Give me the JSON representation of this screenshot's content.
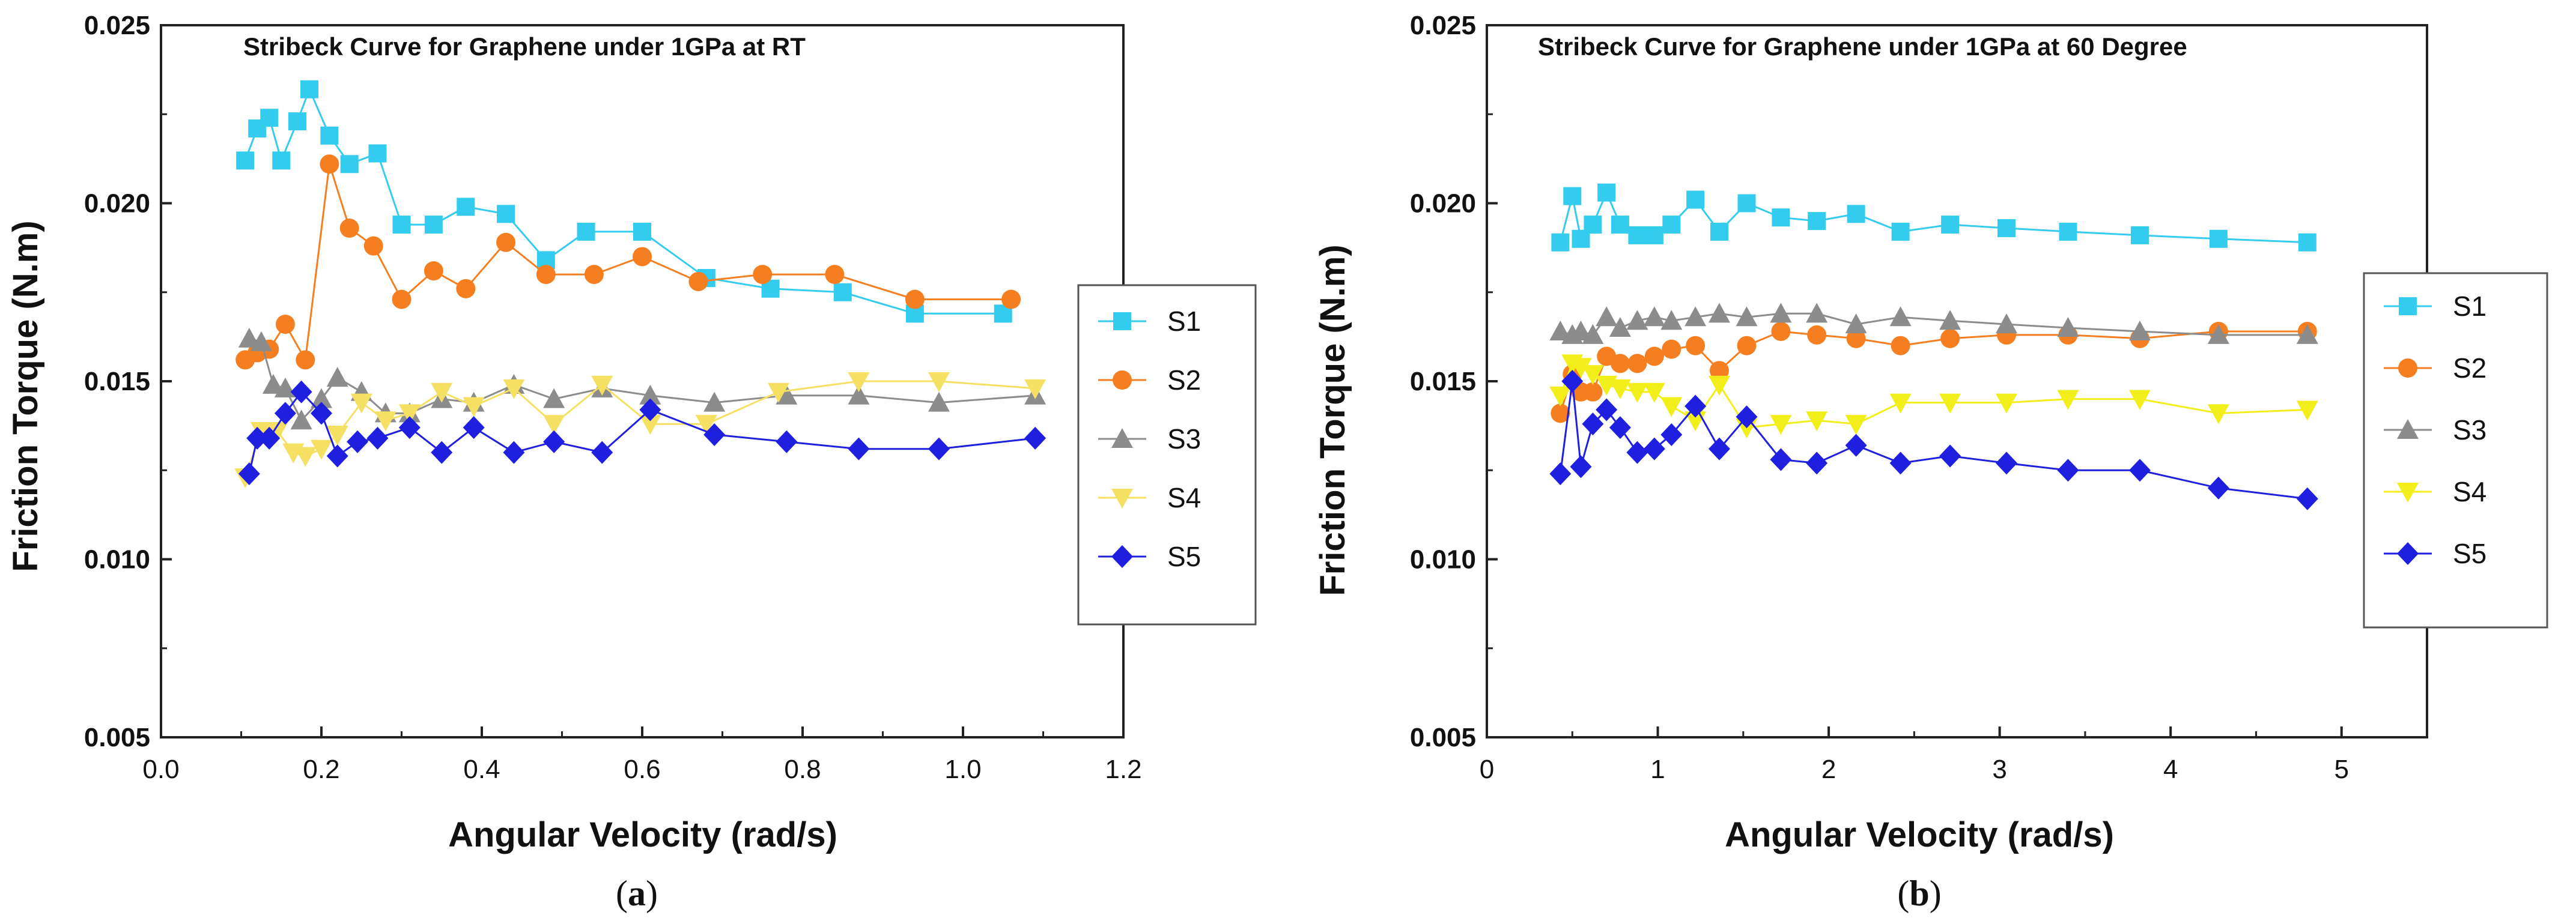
{
  "panels": [
    {
      "caption_open": "(",
      "caption_letter": "a",
      "caption_close": ")"
    },
    {
      "caption_open": "(",
      "caption_letter": "b",
      "caption_close": ")"
    }
  ],
  "chart_data": [
    {
      "type": "line",
      "title": "Stribeck Curve for Graphene under 1GPa at RT",
      "xlabel": "Angular Velocity (rad/s)",
      "ylabel": "Friction Torque (N.m)",
      "xlim": [
        0.0,
        1.2
      ],
      "ylim": [
        0.005,
        0.025
      ],
      "xticks": [
        0.0,
        0.2,
        0.4,
        0.6,
        0.8,
        1.0,
        1.2
      ],
      "xtick_labels": [
        "0.0",
        "0.2",
        "0.4",
        "0.6",
        "0.8",
        "1.0",
        "1.2"
      ],
      "yticks": [
        0.005,
        0.01,
        0.015,
        0.02,
        0.025
      ],
      "ytick_labels": [
        "0.005",
        "0.010",
        "0.015",
        "0.020",
        "0.025"
      ],
      "legend_position": "right",
      "series": [
        {
          "name": "S1",
          "marker": "square",
          "color": "#33CCEE",
          "x": [
            0.105,
            0.12,
            0.135,
            0.15,
            0.17,
            0.185,
            0.21,
            0.235,
            0.27,
            0.3,
            0.34,
            0.38,
            0.43,
            0.48,
            0.53,
            0.6,
            0.68,
            0.76,
            0.85,
            0.94,
            1.05
          ],
          "y": [
            0.0212,
            0.0221,
            0.0224,
            0.0212,
            0.0223,
            0.0232,
            0.0219,
            0.0211,
            0.0214,
            0.0194,
            0.0194,
            0.0199,
            0.0197,
            0.0184,
            0.0192,
            0.0192,
            0.0179,
            0.0176,
            0.0175,
            0.0169,
            0.0169
          ]
        },
        {
          "name": "S2",
          "marker": "circle",
          "color": "#F57F20",
          "x": [
            0.105,
            0.12,
            0.135,
            0.155,
            0.18,
            0.21,
            0.235,
            0.265,
            0.3,
            0.34,
            0.38,
            0.43,
            0.48,
            0.54,
            0.6,
            0.67,
            0.75,
            0.84,
            0.94,
            1.06
          ],
          "y": [
            0.0156,
            0.0158,
            0.0159,
            0.0166,
            0.0156,
            0.0211,
            0.0193,
            0.0188,
            0.0173,
            0.0181,
            0.0176,
            0.0189,
            0.018,
            0.018,
            0.0185,
            0.0178,
            0.018,
            0.018,
            0.0173,
            0.0173
          ]
        },
        {
          "name": "S3",
          "marker": "triangle-up",
          "color": "#8C8C8C",
          "x": [
            0.11,
            0.125,
            0.14,
            0.155,
            0.175,
            0.2,
            0.22,
            0.25,
            0.28,
            0.31,
            0.35,
            0.39,
            0.44,
            0.49,
            0.55,
            0.61,
            0.69,
            0.78,
            0.87,
            0.97,
            1.09
          ],
          "y": [
            0.0162,
            0.0161,
            0.0149,
            0.0148,
            0.0139,
            0.0145,
            0.0151,
            0.0147,
            0.0141,
            0.0141,
            0.0145,
            0.0144,
            0.0149,
            0.0145,
            0.0148,
            0.0146,
            0.0144,
            0.0146,
            0.0146,
            0.0144,
            0.0146
          ]
        },
        {
          "name": "S4",
          "marker": "triangle-down",
          "color": "#F5E064",
          "x": [
            0.105,
            0.125,
            0.145,
            0.165,
            0.18,
            0.2,
            0.22,
            0.25,
            0.28,
            0.31,
            0.35,
            0.39,
            0.44,
            0.49,
            0.55,
            0.61,
            0.68,
            0.77,
            0.87,
            0.97,
            1.09
          ],
          "y": [
            0.0123,
            0.0136,
            0.0136,
            0.013,
            0.0129,
            0.0131,
            0.0135,
            0.0144,
            0.0139,
            0.0141,
            0.0147,
            0.0143,
            0.0148,
            0.0138,
            0.0149,
            0.0138,
            0.0138,
            0.0147,
            0.015,
            0.015,
            0.0148
          ]
        },
        {
          "name": "S5",
          "marker": "diamond",
          "color": "#1F1FE0",
          "x": [
            0.11,
            0.12,
            0.135,
            0.155,
            0.175,
            0.2,
            0.22,
            0.245,
            0.27,
            0.31,
            0.35,
            0.39,
            0.44,
            0.49,
            0.55,
            0.61,
            0.69,
            0.78,
            0.87,
            0.97,
            1.09
          ],
          "y": [
            0.0124,
            0.0134,
            0.0134,
            0.0141,
            0.0147,
            0.0141,
            0.0129,
            0.0133,
            0.0134,
            0.0137,
            0.013,
            0.0137,
            0.013,
            0.0133,
            0.013,
            0.0142,
            0.0135,
            0.0133,
            0.0131,
            0.0131,
            0.0134
          ]
        }
      ]
    },
    {
      "type": "line",
      "title": "Stribeck Curve for Graphene under 1GPa at 60 Degree",
      "xlabel": "Angular Velocity (rad/s)",
      "ylabel": "Friction Torque (N.m)",
      "xlim": [
        0,
        5.5
      ],
      "ylim": [
        0.005,
        0.025
      ],
      "xticks": [
        0,
        1,
        2,
        3,
        4,
        5
      ],
      "xtick_labels": [
        "0",
        "1",
        "2",
        "3",
        "4",
        "5"
      ],
      "yticks": [
        0.005,
        0.01,
        0.015,
        0.02,
        0.025
      ],
      "ytick_labels": [
        "0.005",
        "0.010",
        "0.015",
        "0.020",
        "0.025"
      ],
      "legend_position": "right",
      "series": [
        {
          "name": "S1",
          "marker": "square",
          "color": "#33CCEE",
          "x": [
            0.43,
            0.5,
            0.55,
            0.62,
            0.7,
            0.78,
            0.88,
            0.98,
            1.08,
            1.22,
            1.36,
            1.52,
            1.72,
            1.93,
            2.16,
            2.42,
            2.71,
            3.04,
            3.4,
            3.82,
            4.28,
            4.8
          ],
          "y": [
            0.0189,
            0.0202,
            0.019,
            0.0194,
            0.0203,
            0.0194,
            0.0191,
            0.0191,
            0.0194,
            0.0201,
            0.0192,
            0.02,
            0.0196,
            0.0195,
            0.0197,
            0.0192,
            0.0194,
            0.0193,
            0.0192,
            0.0191,
            0.019,
            0.0189
          ]
        },
        {
          "name": "S2",
          "marker": "circle",
          "color": "#F57F20",
          "x": [
            0.43,
            0.5,
            0.55,
            0.62,
            0.7,
            0.78,
            0.88,
            0.98,
            1.08,
            1.22,
            1.36,
            1.52,
            1.72,
            1.93,
            2.16,
            2.42,
            2.71,
            3.04,
            3.4,
            3.82,
            4.28,
            4.8
          ],
          "y": [
            0.0141,
            0.0152,
            0.0147,
            0.0147,
            0.0157,
            0.0155,
            0.0155,
            0.0157,
            0.0159,
            0.016,
            0.0153,
            0.016,
            0.0164,
            0.0163,
            0.0162,
            0.016,
            0.0162,
            0.0163,
            0.0163,
            0.0162,
            0.0164,
            0.0164
          ]
        },
        {
          "name": "S3",
          "marker": "triangle-up",
          "color": "#8C8C8C",
          "x": [
            0.43,
            0.5,
            0.55,
            0.62,
            0.7,
            0.78,
            0.88,
            0.98,
            1.08,
            1.22,
            1.36,
            1.52,
            1.72,
            1.93,
            2.16,
            2.42,
            2.71,
            3.04,
            3.4,
            3.82,
            4.28,
            4.8
          ],
          "y": [
            0.0164,
            0.0163,
            0.0164,
            0.0163,
            0.0168,
            0.0165,
            0.0167,
            0.0168,
            0.0167,
            0.0168,
            0.0169,
            0.0168,
            0.0169,
            0.0169,
            0.0166,
            0.0168,
            0.0167,
            0.0166,
            0.0165,
            0.0164,
            0.0163,
            0.0163
          ]
        },
        {
          "name": "S4",
          "marker": "triangle-down",
          "color": "#F2EE1A",
          "x": [
            0.43,
            0.5,
            0.55,
            0.62,
            0.7,
            0.78,
            0.88,
            0.98,
            1.08,
            1.22,
            1.36,
            1.52,
            1.72,
            1.93,
            2.16,
            2.42,
            2.71,
            3.04,
            3.4,
            3.82,
            4.28,
            4.8
          ],
          "y": [
            0.0146,
            0.0155,
            0.0154,
            0.0152,
            0.0149,
            0.0148,
            0.0147,
            0.0147,
            0.0143,
            0.0139,
            0.0149,
            0.0137,
            0.0138,
            0.0139,
            0.0138,
            0.0144,
            0.0144,
            0.0144,
            0.0145,
            0.0145,
            0.0141,
            0.0142
          ]
        },
        {
          "name": "S5",
          "marker": "diamond",
          "color": "#1F1FE0",
          "x": [
            0.43,
            0.5,
            0.55,
            0.62,
            0.7,
            0.78,
            0.88,
            0.98,
            1.08,
            1.22,
            1.36,
            1.52,
            1.72,
            1.93,
            2.16,
            2.42,
            2.71,
            3.04,
            3.4,
            3.82,
            4.28,
            4.8
          ],
          "y": [
            0.0124,
            0.015,
            0.0126,
            0.0138,
            0.0142,
            0.0137,
            0.013,
            0.0131,
            0.0135,
            0.0143,
            0.0131,
            0.014,
            0.0128,
            0.0127,
            0.0132,
            0.0127,
            0.0129,
            0.0127,
            0.0125,
            0.0125,
            0.012,
            0.0117
          ]
        }
      ]
    }
  ]
}
